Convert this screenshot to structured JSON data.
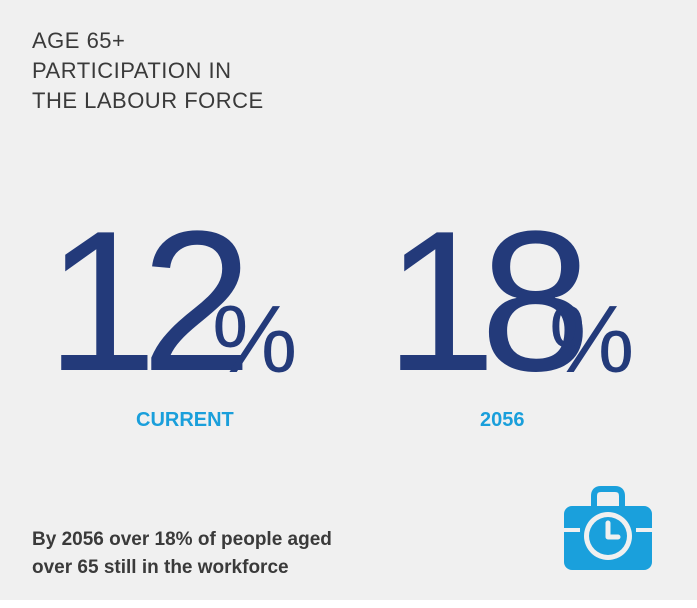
{
  "heading": {
    "lines": [
      "AGE 65+",
      "PARTICIPATION IN",
      "THE LABOUR FORCE"
    ]
  },
  "stats": [
    {
      "number": "12",
      "percent": "%",
      "label": "CURRENT"
    },
    {
      "number": "18",
      "percent": "%",
      "label": "2056"
    }
  ],
  "caption": {
    "lines": [
      "By 2056 over 18% of people aged",
      "over 65 still in the workforce"
    ]
  },
  "icon": {
    "name": "briefcase-clock-icon",
    "color": "#1aa0dc"
  },
  "colors": {
    "background": "#f0f0f0",
    "number": "#233a7a",
    "label": "#1a9fdb",
    "text": "#3a3a3a"
  }
}
